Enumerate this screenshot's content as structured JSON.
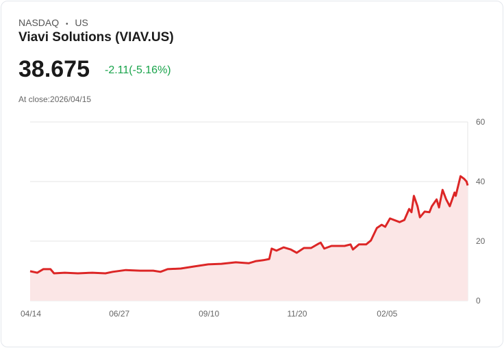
{
  "header": {
    "exchange": "NASDAQ",
    "separator": "•",
    "region": "US",
    "title": "Viavi Solutions (VIAV.US)",
    "price": "38.675",
    "change": "-2.11(-5.16%)",
    "close_label": "At close:2026/04/15"
  },
  "colors": {
    "line": "#dc2626",
    "fill": "#fbe6e6",
    "change": "#18a34a"
  },
  "chart_data": {
    "type": "area",
    "title": "",
    "xlabel": "",
    "ylabel": "",
    "ylim": [
      0,
      60
    ],
    "xlim_days": [
      0,
      366
    ],
    "y_ticks": [
      0,
      20,
      40,
      60
    ],
    "x_ticks": [
      {
        "day": 0,
        "label": "04/14"
      },
      {
        "day": 74,
        "label": "06/27"
      },
      {
        "day": 149,
        "label": "09/10"
      },
      {
        "day": 223,
        "label": "11/20"
      },
      {
        "day": 298,
        "label": "02/05"
      }
    ],
    "grid": true,
    "series": [
      {
        "name": "VIAV.US",
        "points": [
          [
            0,
            9.9
          ],
          [
            6,
            9.4
          ],
          [
            11,
            10.6
          ],
          [
            17,
            10.6
          ],
          [
            20,
            9.2
          ],
          [
            29,
            9.4
          ],
          [
            40,
            9.2
          ],
          [
            52,
            9.4
          ],
          [
            63,
            9.2
          ],
          [
            69,
            9.7
          ],
          [
            80,
            10.3
          ],
          [
            92,
            10.1
          ],
          [
            103,
            10.1
          ],
          [
            109,
            9.7
          ],
          [
            115,
            10.6
          ],
          [
            126,
            10.8
          ],
          [
            137,
            11.5
          ],
          [
            149,
            12.2
          ],
          [
            160,
            12.4
          ],
          [
            172,
            12.9
          ],
          [
            183,
            12.6
          ],
          [
            189,
            13.3
          ],
          [
            195,
            13.6
          ],
          [
            200,
            14.0
          ],
          [
            202,
            17.5
          ],
          [
            206,
            16.8
          ],
          [
            212,
            17.9
          ],
          [
            218,
            17.2
          ],
          [
            223,
            16.1
          ],
          [
            229,
            17.7
          ],
          [
            235,
            17.7
          ],
          [
            241,
            19.1
          ],
          [
            243,
            19.5
          ],
          [
            246,
            17.5
          ],
          [
            252,
            18.4
          ],
          [
            263,
            18.4
          ],
          [
            268,
            18.9
          ],
          [
            270,
            17.2
          ],
          [
            275,
            18.9
          ],
          [
            281,
            18.9
          ],
          [
            285,
            20.2
          ],
          [
            290,
            24.4
          ],
          [
            294,
            25.5
          ],
          [
            297,
            24.8
          ],
          [
            301,
            27.6
          ],
          [
            309,
            26.4
          ],
          [
            313,
            27.1
          ],
          [
            317,
            30.8
          ],
          [
            319,
            29.7
          ],
          [
            321,
            35.2
          ],
          [
            324,
            31.7
          ],
          [
            326,
            28.0
          ],
          [
            330,
            29.9
          ],
          [
            334,
            29.7
          ],
          [
            336,
            31.7
          ],
          [
            340,
            34.0
          ],
          [
            342,
            31.3
          ],
          [
            345,
            37.2
          ],
          [
            348,
            34.0
          ],
          [
            351,
            31.7
          ],
          [
            355,
            36.3
          ],
          [
            356,
            35.2
          ],
          [
            360,
            41.8
          ],
          [
            363,
            40.9
          ],
          [
            365,
            40.0
          ],
          [
            366,
            38.7
          ]
        ]
      }
    ]
  }
}
